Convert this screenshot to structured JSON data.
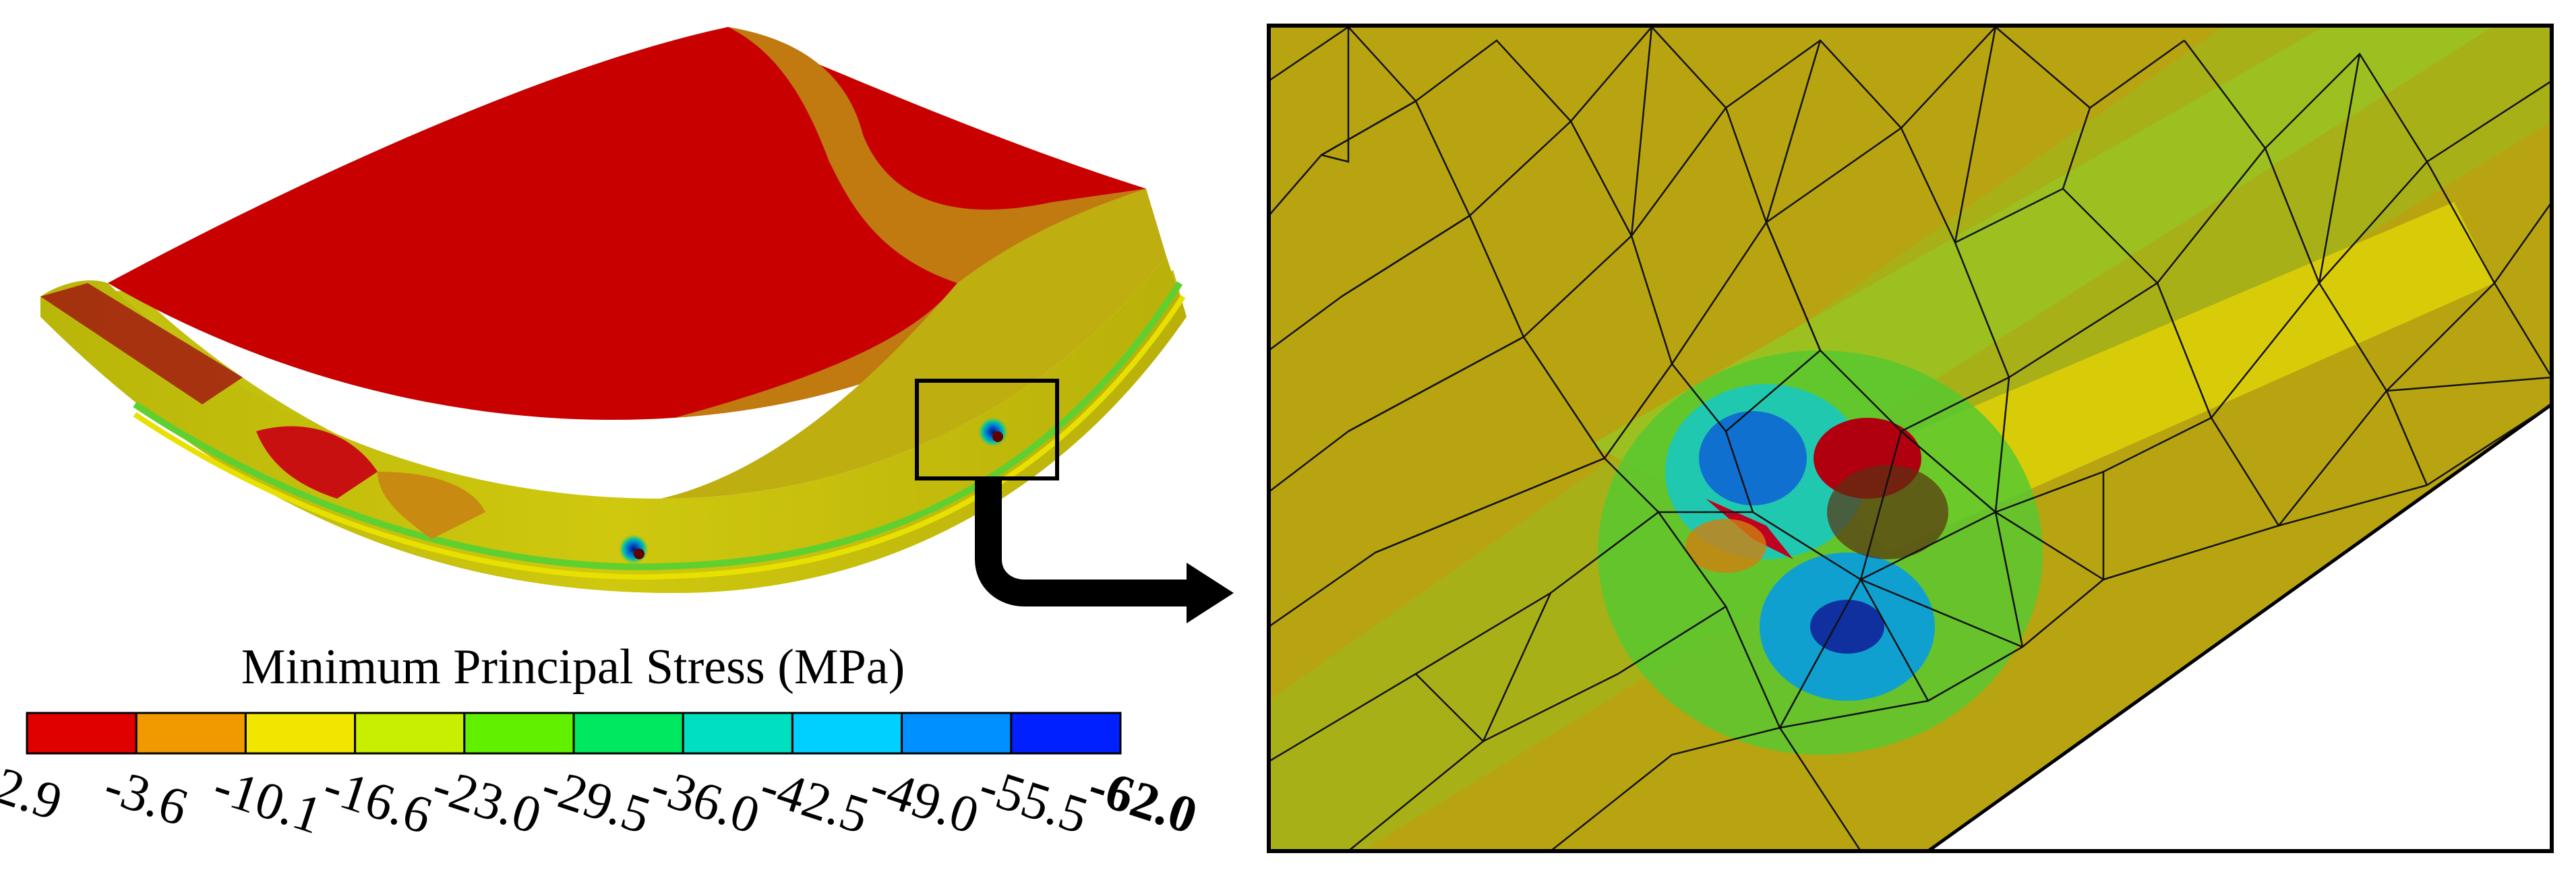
{
  "legend": {
    "title": "Minimum Principal Stress (MPa)",
    "ticks": [
      "2.9",
      "-3.6",
      "-10.1",
      "-16.6",
      "-23.0",
      "-29.5",
      "-36.0",
      "-42.5",
      "-49.0",
      "-55.5",
      "-62.0"
    ],
    "colors": [
      "#e00000",
      "#f09a00",
      "#f2e600",
      "#c8ee00",
      "#60f000",
      "#00e860",
      "#00e0c0",
      "#00d0ff",
      "#0090ff",
      "#0020ff"
    ],
    "bold_tick": "-62.0"
  },
  "panels": {
    "left": "fe-model-overview",
    "right": "zoomed-mesh-detail"
  }
}
